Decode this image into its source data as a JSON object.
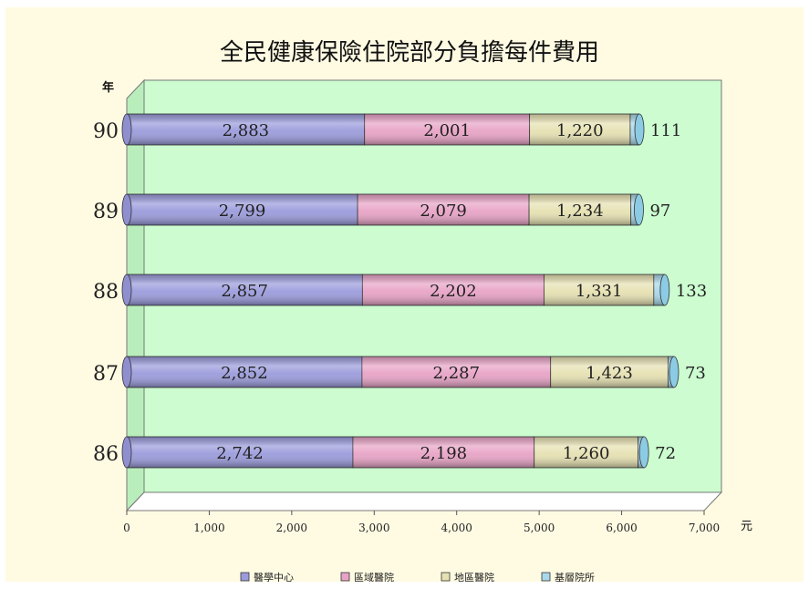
{
  "chart_data": {
    "type": "bar",
    "orientation": "horizontal",
    "stacked": true,
    "title": "全民健康保險住院部分負擔每件費用",
    "ylabel": "年",
    "xlabel": "元",
    "categories": [
      "90",
      "89",
      "88",
      "87",
      "86"
    ],
    "series": [
      {
        "name": "醫學中心",
        "color": "#9b9bdc",
        "values": [
          2883,
          2799,
          2857,
          2852,
          2742
        ]
      },
      {
        "name": "區域醫院",
        "color": "#e8a3c6",
        "values": [
          2001,
          2079,
          2202,
          2287,
          2198
        ]
      },
      {
        "name": "地區醫院",
        "color": "#e6e1b2",
        "values": [
          1220,
          1234,
          1331,
          1423,
          1260
        ]
      },
      {
        "name": "基層院所",
        "color": "#a9d8ea",
        "values": [
          111,
          97,
          133,
          73,
          72
        ]
      }
    ],
    "value_labels": [
      [
        "2,883",
        "2,001",
        "1,220",
        "111"
      ],
      [
        "2,799",
        "2,079",
        "1,234",
        "97"
      ],
      [
        "2,857",
        "2,202",
        "1,331",
        "133"
      ],
      [
        "2,852",
        "2,287",
        "1,423",
        "73"
      ],
      [
        "2,742",
        "2,198",
        "1,260",
        "72"
      ]
    ],
    "xticks": [
      "0",
      "1,000",
      "2,000",
      "3,000",
      "4,000",
      "5,000",
      "6,000",
      "7,000"
    ],
    "xlim": [
      0,
      7000
    ],
    "grid": false,
    "legend_position": "bottom",
    "plot_background": "#ccfcd0",
    "frame_background": "#fffbe3"
  }
}
